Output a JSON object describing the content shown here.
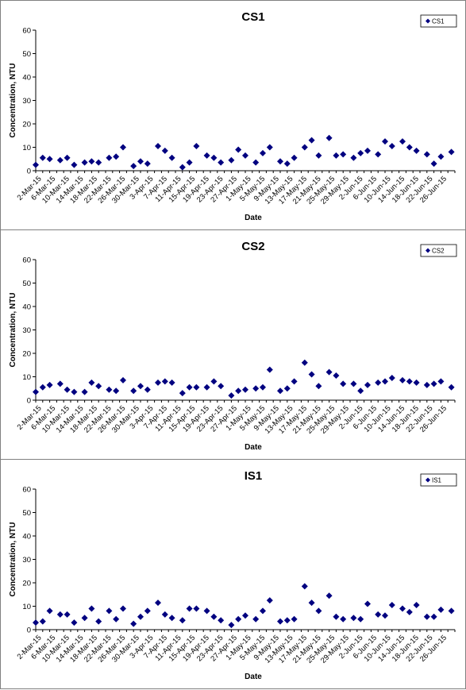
{
  "chart_data": [
    {
      "type": "scatter",
      "title": "CS1",
      "xlabel": "Date",
      "ylabel": "Concentration, NTU",
      "ylim": [
        0,
        60
      ],
      "yticks": [
        0,
        10,
        20,
        30,
        40,
        50,
        60
      ],
      "grid": false,
      "legend": "top-right",
      "marker_color": "#000080",
      "x_tick_labels": [
        "2-Mar-15",
        "6-Mar-15",
        "10-Mar-15",
        "14-Mar-15",
        "18-Mar-15",
        "22-Mar-15",
        "26-Mar-15",
        "30-Mar-15",
        "3-Apr-15",
        "7-Apr-15",
        "11-Apr-15",
        "15-Apr-15",
        "19-Apr-15",
        "23-Apr-15",
        "27-Apr-15",
        "1-May-15",
        "5-May-15",
        "9-May-15",
        "13-May-15",
        "17-May-15",
        "21-May-15",
        "25-May-15",
        "29-May-15",
        "2-Jun-15",
        "6-Jun-15",
        "10-Jun-15",
        "14-Jun-15",
        "18-Jun-15",
        "22-Jun-15",
        "26-Jun-15"
      ],
      "x_range": [
        "2015-03-02",
        "2015-06-30"
      ],
      "series": [
        {
          "name": "CS1",
          "x": [
            "2015-03-02",
            "2015-03-04",
            "2015-03-06",
            "2015-03-09",
            "2015-03-11",
            "2015-03-13",
            "2015-03-16",
            "2015-03-18",
            "2015-03-20",
            "2015-03-23",
            "2015-03-25",
            "2015-03-27",
            "2015-03-30",
            "2015-04-01",
            "2015-04-03",
            "2015-04-06",
            "2015-04-08",
            "2015-04-10",
            "2015-04-13",
            "2015-04-15",
            "2015-04-17",
            "2015-04-20",
            "2015-04-22",
            "2015-04-24",
            "2015-04-27",
            "2015-04-29",
            "2015-05-01",
            "2015-05-04",
            "2015-05-06",
            "2015-05-08",
            "2015-05-11",
            "2015-05-13",
            "2015-05-15",
            "2015-05-18",
            "2015-05-20",
            "2015-05-22",
            "2015-05-25",
            "2015-05-27",
            "2015-05-29",
            "2015-06-01",
            "2015-06-03",
            "2015-06-05",
            "2015-06-08",
            "2015-06-10",
            "2015-06-12",
            "2015-06-15",
            "2015-06-17",
            "2015-06-19",
            "2015-06-22",
            "2015-06-24",
            "2015-06-26",
            "2015-06-29"
          ],
          "y": [
            2.5,
            5.5,
            5,
            4.5,
            5.5,
            2.5,
            3.5,
            4,
            3.5,
            5.5,
            6,
            10,
            2,
            4,
            3,
            10.5,
            8.5,
            5.5,
            1.5,
            3.5,
            10.5,
            6.5,
            5.5,
            3.5,
            4.5,
            9,
            6.5,
            3.5,
            7.5,
            10,
            4,
            3,
            5.5,
            10,
            13,
            6.5,
            14,
            6.5,
            7,
            5.5,
            7.5,
            8.5,
            7,
            12.5,
            10.5,
            12.5,
            10,
            8.5,
            7,
            3,
            6,
            8
          ]
        }
      ]
    },
    {
      "type": "scatter",
      "title": "CS2",
      "xlabel": "Date",
      "ylabel": "Concentration, NTU",
      "ylim": [
        0,
        60
      ],
      "yticks": [
        0,
        10,
        20,
        30,
        40,
        50,
        60
      ],
      "grid": false,
      "legend": "top-right",
      "marker_color": "#000080",
      "x_tick_labels": [
        "2-Mar-15",
        "6-Mar-15",
        "10-Mar-15",
        "14-Mar-15",
        "18-Mar-15",
        "22-Mar-15",
        "26-Mar-15",
        "30-Mar-15",
        "3-Apr-15",
        "7-Apr-15",
        "11-Apr-15",
        "15-Apr-15",
        "19-Apr-15",
        "23-Apr-15",
        "27-Apr-15",
        "1-May-15",
        "5-May-15",
        "9-May-15",
        "13-May-15",
        "17-May-15",
        "21-May-15",
        "25-May-15",
        "29-May-15",
        "2-Jun-15",
        "6-Jun-15",
        "10-Jun-15",
        "14-Jun-15",
        "18-Jun-15",
        "22-Jun-15",
        "26-Jun-15"
      ],
      "x_range": [
        "2015-03-02",
        "2015-06-30"
      ],
      "series": [
        {
          "name": "CS2",
          "x": [
            "2015-03-02",
            "2015-03-04",
            "2015-03-06",
            "2015-03-09",
            "2015-03-11",
            "2015-03-13",
            "2015-03-16",
            "2015-03-18",
            "2015-03-20",
            "2015-03-23",
            "2015-03-25",
            "2015-03-27",
            "2015-03-30",
            "2015-04-01",
            "2015-04-03",
            "2015-04-06",
            "2015-04-08",
            "2015-04-10",
            "2015-04-13",
            "2015-04-15",
            "2015-04-17",
            "2015-04-20",
            "2015-04-22",
            "2015-04-24",
            "2015-04-27",
            "2015-04-29",
            "2015-05-01",
            "2015-05-04",
            "2015-05-06",
            "2015-05-08",
            "2015-05-11",
            "2015-05-13",
            "2015-05-15",
            "2015-05-18",
            "2015-05-20",
            "2015-05-22",
            "2015-05-25",
            "2015-05-27",
            "2015-05-29",
            "2015-06-01",
            "2015-06-03",
            "2015-06-05",
            "2015-06-08",
            "2015-06-10",
            "2015-06-12",
            "2015-06-15",
            "2015-06-17",
            "2015-06-19",
            "2015-06-22",
            "2015-06-24",
            "2015-06-26",
            "2015-06-29"
          ],
          "y": [
            3.5,
            5.5,
            6.5,
            7,
            4.5,
            3.5,
            3.5,
            7.5,
            6,
            4.5,
            4,
            8.5,
            4,
            6,
            4.5,
            7.5,
            8,
            7.5,
            3,
            5.5,
            5.5,
            5.5,
            8,
            6,
            2,
            4,
            4.5,
            5,
            5.5,
            13,
            4,
            5,
            8,
            16,
            11,
            6,
            12,
            10.5,
            7,
            7,
            4,
            6.5,
            7.5,
            8,
            9.5,
            8.5,
            8,
            7.5,
            6.5,
            7,
            8,
            5.5
          ]
        }
      ]
    },
    {
      "type": "scatter",
      "title": "IS1",
      "xlabel": "Date",
      "ylabel": "Concentration, NTU",
      "ylim": [
        0,
        60
      ],
      "yticks": [
        0,
        10,
        20,
        30,
        40,
        50,
        60
      ],
      "grid": false,
      "legend": "top-right",
      "marker_color": "#000080",
      "x_tick_labels": [
        "2-Mar-15",
        "6-Mar-15",
        "10-Mar-15",
        "14-Mar-15",
        "18-Mar-15",
        "22-Mar-15",
        "26-Mar-15",
        "30-Mar-15",
        "3-Apr-15",
        "7-Apr-15",
        "11-Apr-15",
        "15-Apr-15",
        "19-Apr-15",
        "23-Apr-15",
        "27-Apr-15",
        "1-May-15",
        "5-May-15",
        "9-May-15",
        "13-May-15",
        "17-May-15",
        "21-May-15",
        "25-May-15",
        "29-May-15",
        "2-Jun-15",
        "6-Jun-15",
        "10-Jun-15",
        "14-Jun-15",
        "18-Jun-15",
        "22-Jun-15",
        "26-Jun-15"
      ],
      "x_range": [
        "2015-03-02",
        "2015-06-30"
      ],
      "series": [
        {
          "name": "IS1",
          "x": [
            "2015-03-02",
            "2015-03-04",
            "2015-03-06",
            "2015-03-09",
            "2015-03-11",
            "2015-03-13",
            "2015-03-16",
            "2015-03-18",
            "2015-03-20",
            "2015-03-23",
            "2015-03-25",
            "2015-03-27",
            "2015-03-30",
            "2015-04-01",
            "2015-04-03",
            "2015-04-06",
            "2015-04-08",
            "2015-04-10",
            "2015-04-13",
            "2015-04-15",
            "2015-04-17",
            "2015-04-20",
            "2015-04-22",
            "2015-04-24",
            "2015-04-27",
            "2015-04-29",
            "2015-05-01",
            "2015-05-04",
            "2015-05-06",
            "2015-05-08",
            "2015-05-11",
            "2015-05-13",
            "2015-05-15",
            "2015-05-18",
            "2015-05-20",
            "2015-05-22",
            "2015-05-25",
            "2015-05-27",
            "2015-05-29",
            "2015-06-01",
            "2015-06-03",
            "2015-06-05",
            "2015-06-08",
            "2015-06-10",
            "2015-06-12",
            "2015-06-15",
            "2015-06-17",
            "2015-06-19",
            "2015-06-22",
            "2015-06-24",
            "2015-06-26",
            "2015-06-29"
          ],
          "y": [
            3,
            3.5,
            8,
            6.5,
            6.5,
            3,
            5,
            9,
            3.5,
            8,
            4.5,
            9,
            2.5,
            5.5,
            8,
            11.5,
            6.5,
            5,
            4,
            9,
            9,
            8,
            5.5,
            4,
            2,
            4.5,
            6,
            4.5,
            8,
            12.5,
            3.5,
            4,
            4.5,
            18.5,
            11.5,
            8,
            14.5,
            5.5,
            4.5,
            5,
            4.5,
            11,
            6.5,
            6,
            10.5,
            9,
            7.5,
            10.5,
            5.5,
            5.5,
            8.5,
            8
          ]
        }
      ]
    }
  ]
}
